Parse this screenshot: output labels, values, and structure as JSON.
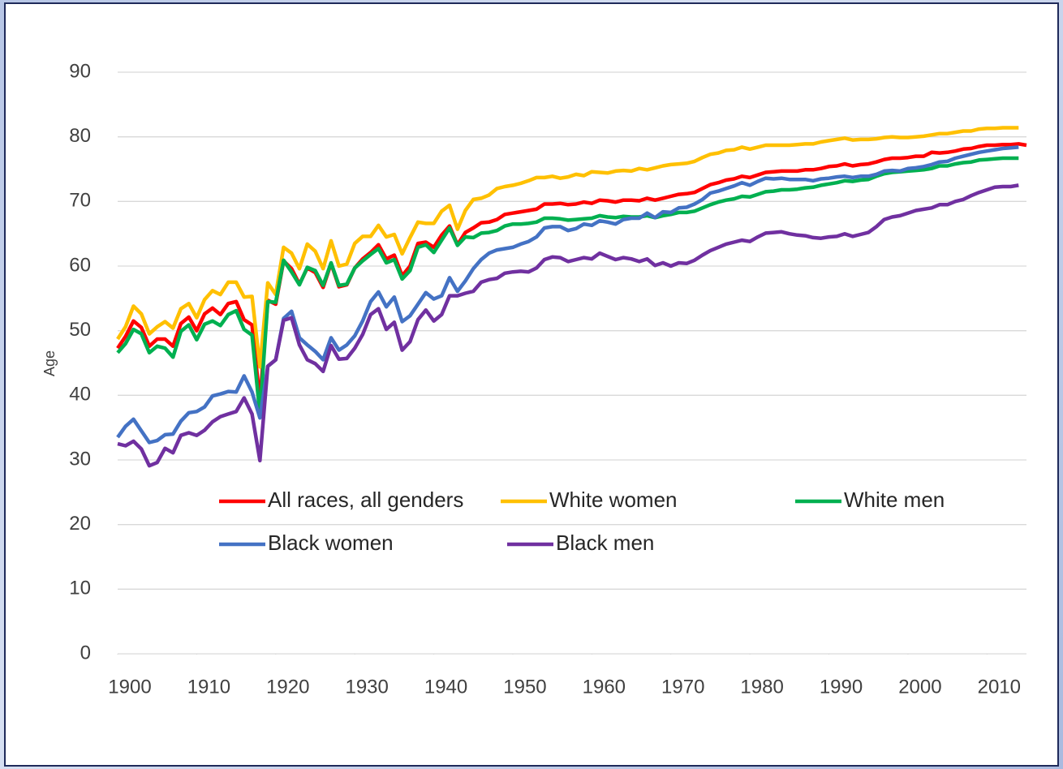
{
  "chart_data": {
    "type": "line",
    "y_label": "Age",
    "x": [
      1900,
      1901,
      1902,
      1903,
      1904,
      1905,
      1906,
      1907,
      1908,
      1909,
      1910,
      1911,
      1912,
      1913,
      1914,
      1915,
      1916,
      1917,
      1918,
      1919,
      1920,
      1921,
      1922,
      1923,
      1924,
      1925,
      1926,
      1927,
      1928,
      1929,
      1930,
      1931,
      1932,
      1933,
      1934,
      1935,
      1936,
      1937,
      1938,
      1939,
      1940,
      1941,
      1942,
      1943,
      1944,
      1945,
      1946,
      1947,
      1948,
      1949,
      1950,
      1951,
      1952,
      1953,
      1954,
      1955,
      1956,
      1957,
      1958,
      1959,
      1960,
      1961,
      1962,
      1963,
      1964,
      1965,
      1966,
      1967,
      1968,
      1969,
      1970,
      1971,
      1972,
      1973,
      1974,
      1975,
      1976,
      1977,
      1978,
      1979,
      1980,
      1981,
      1982,
      1983,
      1984,
      1985,
      1986,
      1987,
      1988,
      1989,
      1990,
      1991,
      1992,
      1993,
      1994,
      1995,
      1996,
      1997,
      1998,
      1999,
      2000,
      2001,
      2002,
      2003,
      2004,
      2005,
      2006,
      2007,
      2008,
      2009,
      2010,
      2011,
      2012,
      2013,
      2014,
      2015
    ],
    "xlim": [
      1900,
      2015
    ],
    "xticks": [
      1900,
      1910,
      1920,
      1930,
      1940,
      1950,
      1960,
      1970,
      1980,
      1990,
      2000,
      2010
    ],
    "ylim": [
      0,
      90
    ],
    "yticks": [
      0,
      10,
      20,
      30,
      40,
      50,
      60,
      70,
      80,
      90
    ],
    "grid": true,
    "series": [
      {
        "name": "All races, all genders",
        "color": "#ff0000",
        "values": [
          47.3,
          49.1,
          51.5,
          50.5,
          47.6,
          48.7,
          48.7,
          47.6,
          51.1,
          52.1,
          50.0,
          52.6,
          53.5,
          52.5,
          54.2,
          54.5,
          51.7,
          50.9,
          39.1,
          54.7,
          54.1,
          60.8,
          59.6,
          57.2,
          59.7,
          59.0,
          56.7,
          60.4,
          56.8,
          57.1,
          59.7,
          61.1,
          62.1,
          63.3,
          61.1,
          61.7,
          58.5,
          60.0,
          63.5,
          63.7,
          62.9,
          64.8,
          66.2,
          63.3,
          65.2,
          65.9,
          66.7,
          66.8,
          67.2,
          68.0,
          68.2,
          68.4,
          68.6,
          68.8,
          69.6,
          69.6,
          69.7,
          69.5,
          69.6,
          69.9,
          69.7,
          70.2,
          70.1,
          69.9,
          70.2,
          70.2,
          70.1,
          70.5,
          70.2,
          70.5,
          70.8,
          71.1,
          71.2,
          71.4,
          72.0,
          72.6,
          72.9,
          73.3,
          73.5,
          73.9,
          73.7,
          74.1,
          74.5,
          74.6,
          74.7,
          74.7,
          74.7,
          74.9,
          74.9,
          75.1,
          75.4,
          75.5,
          75.8,
          75.5,
          75.7,
          75.8,
          76.1,
          76.5,
          76.7,
          76.7,
          76.8,
          77.0,
          77.0,
          77.6,
          77.5,
          77.6,
          77.8,
          78.1,
          78.2,
          78.5,
          78.7,
          78.7,
          78.8,
          78.8,
          78.9,
          78.7
        ]
      },
      {
        "name": "White women",
        "color": "#ffc000",
        "values": [
          48.7,
          50.6,
          53.8,
          52.6,
          49.5,
          50.6,
          51.4,
          50.4,
          53.4,
          54.2,
          52.0,
          54.8,
          56.2,
          55.6,
          57.5,
          57.5,
          55.2,
          55.3,
          44.4,
          57.4,
          55.6,
          62.9,
          62.0,
          59.6,
          63.4,
          62.3,
          59.6,
          63.9,
          60.0,
          60.3,
          63.5,
          64.6,
          64.6,
          66.3,
          64.5,
          64.9,
          61.9,
          64.4,
          66.8,
          66.6,
          66.6,
          68.5,
          69.4,
          65.7,
          68.6,
          70.3,
          70.5,
          71.0,
          72.0,
          72.3,
          72.5,
          72.8,
          73.2,
          73.7,
          73.7,
          73.9,
          73.6,
          73.8,
          74.2,
          74.0,
          74.6,
          74.5,
          74.4,
          74.7,
          74.8,
          74.7,
          75.1,
          74.9,
          75.2,
          75.5,
          75.7,
          75.8,
          75.9,
          76.2,
          76.8,
          77.3,
          77.5,
          77.9,
          78.0,
          78.4,
          78.1,
          78.4,
          78.7,
          78.7,
          78.7,
          78.7,
          78.8,
          78.9,
          78.9,
          79.2,
          79.4,
          79.6,
          79.8,
          79.5,
          79.6,
          79.6,
          79.7,
          79.9,
          80.0,
          79.9,
          79.9,
          80.0,
          80.1,
          80.3,
          80.5,
          80.5,
          80.7,
          80.9,
          80.9,
          81.2,
          81.3,
          81.3,
          81.4,
          81.4,
          81.4,
          null
        ]
      },
      {
        "name": "White men",
        "color": "#00b050",
        "values": [
          46.6,
          48.0,
          50.2,
          49.5,
          46.6,
          47.6,
          47.3,
          45.9,
          49.9,
          50.9,
          48.6,
          51.0,
          51.5,
          50.8,
          52.5,
          53.1,
          50.2,
          49.3,
          37.1,
          54.5,
          54.4,
          60.9,
          59.1,
          57.1,
          59.8,
          59.3,
          57.0,
          60.5,
          57.0,
          57.2,
          59.7,
          60.8,
          61.8,
          62.7,
          60.5,
          61.0,
          58.0,
          59.3,
          62.9,
          63.3,
          62.1,
          64.0,
          65.9,
          63.2,
          64.5,
          64.4,
          65.1,
          65.2,
          65.5,
          66.2,
          66.5,
          66.5,
          66.6,
          66.8,
          67.4,
          67.4,
          67.3,
          67.1,
          67.2,
          67.3,
          67.4,
          67.8,
          67.6,
          67.5,
          67.7,
          67.6,
          67.6,
          67.8,
          67.5,
          67.8,
          68.0,
          68.3,
          68.3,
          68.5,
          69.0,
          69.5,
          69.9,
          70.2,
          70.4,
          70.8,
          70.7,
          71.1,
          71.5,
          71.6,
          71.8,
          71.8,
          71.9,
          72.1,
          72.2,
          72.5,
          72.7,
          72.9,
          73.2,
          73.1,
          73.3,
          73.4,
          73.9,
          74.3,
          74.5,
          74.6,
          74.7,
          74.8,
          74.9,
          75.1,
          75.5,
          75.5,
          75.8,
          76.0,
          76.1,
          76.4,
          76.5,
          76.6,
          76.7,
          76.7,
          76.7,
          null
        ]
      },
      {
        "name": "Black women",
        "color": "#4472c4",
        "values": [
          33.5,
          35.2,
          36.3,
          34.5,
          32.7,
          33.0,
          33.9,
          34.0,
          36.0,
          37.3,
          37.5,
          38.2,
          39.9,
          40.2,
          40.6,
          40.5,
          43.0,
          40.5,
          36.5,
          44.5,
          45.5,
          51.9,
          53.0,
          48.9,
          47.8,
          46.8,
          45.5,
          48.9,
          47.0,
          47.8,
          49.2,
          51.5,
          54.5,
          56.0,
          53.7,
          55.2,
          51.4,
          52.3,
          54.1,
          55.9,
          54.9,
          55.4,
          58.2,
          56.1,
          57.7,
          59.6,
          61.0,
          62.0,
          62.5,
          62.7,
          62.9,
          63.4,
          63.8,
          64.5,
          65.9,
          66.1,
          66.1,
          65.5,
          65.8,
          66.5,
          66.3,
          67.0,
          66.8,
          66.5,
          67.2,
          67.4,
          67.4,
          68.2,
          67.5,
          68.4,
          68.3,
          69.0,
          69.1,
          69.6,
          70.3,
          71.3,
          71.6,
          72.0,
          72.4,
          72.9,
          72.5,
          73.1,
          73.6,
          73.5,
          73.6,
          73.4,
          73.4,
          73.4,
          73.2,
          73.5,
          73.6,
          73.8,
          73.9,
          73.7,
          73.9,
          73.9,
          74.2,
          74.7,
          74.8,
          74.7,
          75.1,
          75.2,
          75.4,
          75.7,
          76.1,
          76.2,
          76.7,
          77.0,
          77.3,
          77.6,
          77.8,
          78.0,
          78.2,
          78.3,
          78.4,
          null
        ]
      },
      {
        "name": "Black men",
        "color": "#7030a0",
        "values": [
          32.5,
          32.2,
          32.9,
          31.7,
          29.1,
          29.6,
          31.8,
          31.1,
          33.8,
          34.2,
          33.8,
          34.6,
          35.9,
          36.7,
          37.1,
          37.5,
          39.6,
          37.1,
          29.9,
          44.5,
          45.5,
          51.6,
          52.0,
          47.8,
          45.5,
          44.9,
          43.7,
          47.7,
          45.6,
          45.7,
          47.3,
          49.4,
          52.5,
          53.4,
          50.2,
          51.3,
          47.0,
          48.3,
          51.7,
          53.2,
          51.5,
          52.5,
          55.4,
          55.4,
          55.8,
          56.1,
          57.5,
          57.9,
          58.1,
          58.9,
          59.1,
          59.2,
          59.1,
          59.7,
          61.0,
          61.4,
          61.3,
          60.7,
          61.0,
          61.3,
          61.1,
          62.0,
          61.5,
          61.0,
          61.3,
          61.1,
          60.7,
          61.1,
          60.1,
          60.5,
          60.0,
          60.5,
          60.4,
          60.9,
          61.7,
          62.4,
          62.9,
          63.4,
          63.7,
          64.0,
          63.8,
          64.5,
          65.1,
          65.2,
          65.3,
          65.0,
          64.8,
          64.7,
          64.4,
          64.3,
          64.5,
          64.6,
          65.0,
          64.6,
          64.9,
          65.2,
          66.1,
          67.2,
          67.6,
          67.8,
          68.2,
          68.6,
          68.8,
          69.0,
          69.5,
          69.5,
          70.0,
          70.3,
          70.9,
          71.4,
          71.8,
          72.2,
          72.3,
          72.3,
          72.5,
          null
        ]
      }
    ]
  }
}
